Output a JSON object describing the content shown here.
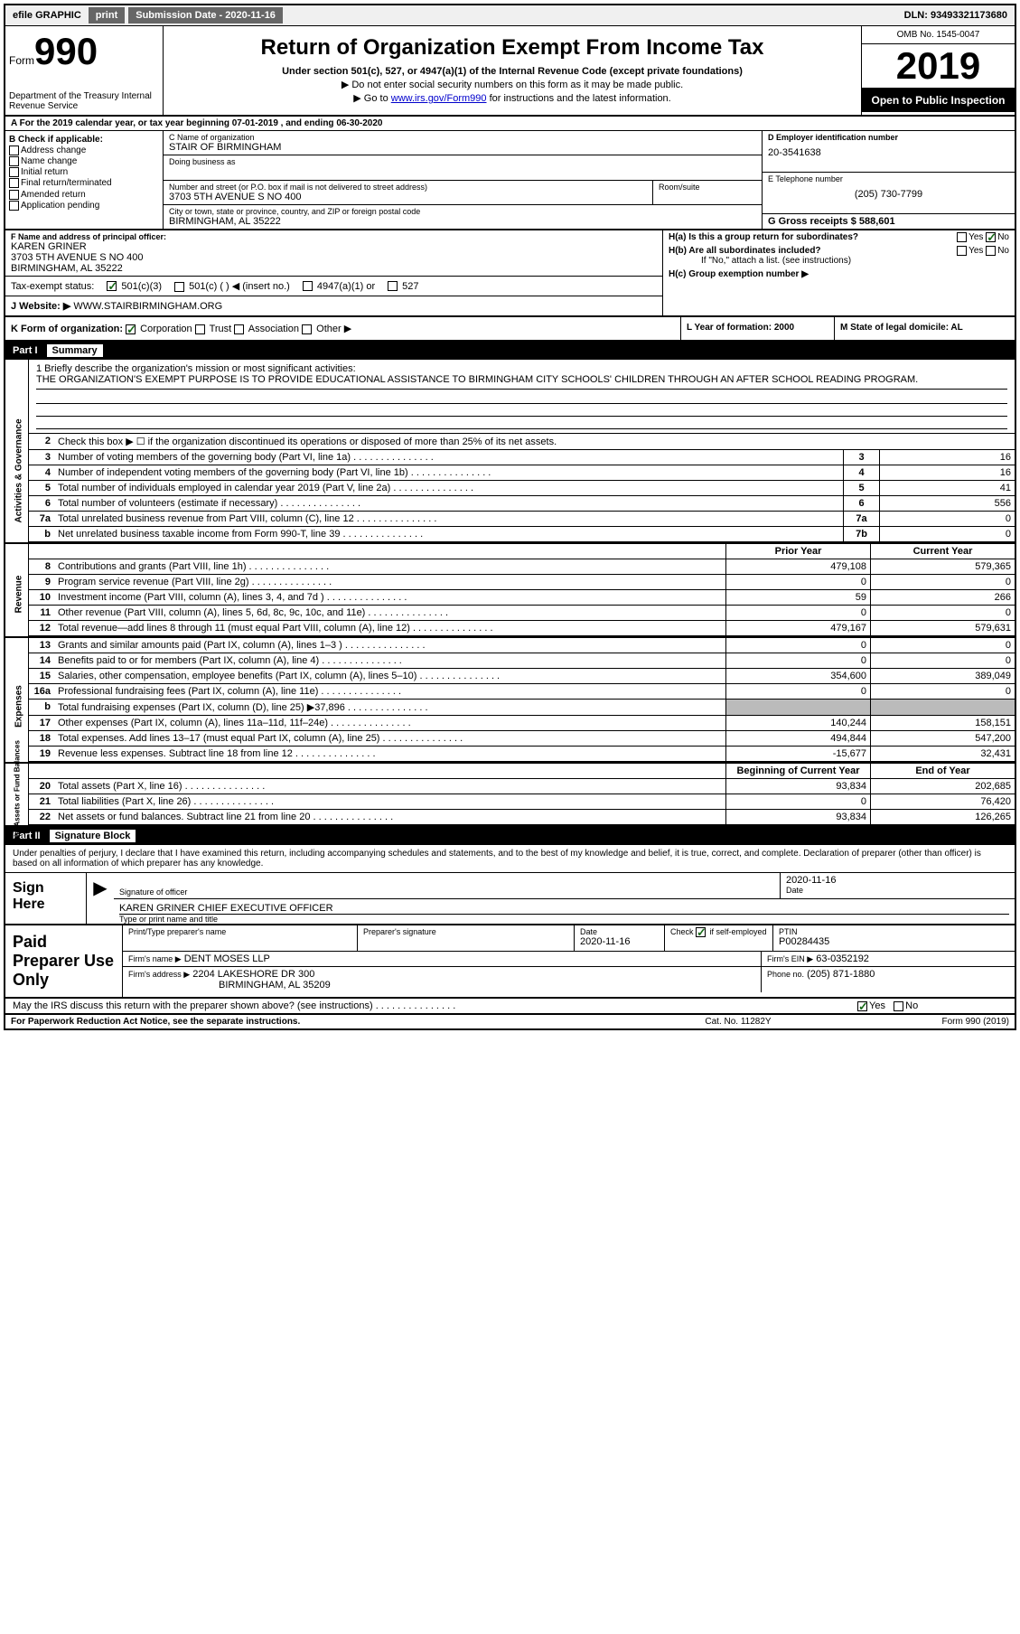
{
  "topbar": {
    "efile": "efile GRAPHIC",
    "print": "print",
    "subdate_label": "Submission Date - 2020-11-16",
    "dln": "DLN: 93493321173680"
  },
  "header": {
    "form_label": "Form",
    "form_num": "990",
    "dept": "Department of the Treasury\nInternal Revenue Service",
    "title": "Return of Organization Exempt From Income Tax",
    "sub1": "Under section 501(c), 527, or 4947(a)(1) of the Internal Revenue Code (except private foundations)",
    "sub2": "▶ Do not enter social security numbers on this form as it may be made public.",
    "sub3_pre": "▶ Go to ",
    "sub3_link": "www.irs.gov/Form990",
    "sub3_post": " for instructions and the latest information.",
    "omb": "OMB No. 1545-0047",
    "year": "2019",
    "open_pub": "Open to Public Inspection"
  },
  "lineA": "A For the 2019 calendar year, or tax year beginning 07-01-2019    , and ending 06-30-2020",
  "sectionB": {
    "label": "B Check if applicable:",
    "opts": [
      "Address change",
      "Name change",
      "Initial return",
      "Final return/terminated",
      "Amended return",
      "Application pending"
    ]
  },
  "sectionC": {
    "name_label": "C Name of organization",
    "name": "STAIR OF BIRMINGHAM",
    "dba_label": "Doing business as",
    "addr_label": "Number and street (or P.O. box if mail is not delivered to street address)",
    "addr": "3703 5TH AVENUE S NO 400",
    "room_label": "Room/suite",
    "city_label": "City or town, state or province, country, and ZIP or foreign postal code",
    "city": "BIRMINGHAM, AL  35222"
  },
  "sectionD": {
    "label": "D Employer identification number",
    "val": "20-3541638"
  },
  "sectionE": {
    "label": "E Telephone number",
    "val": "(205) 730-7799"
  },
  "sectionG": {
    "label": "G Gross receipts $ 588,601"
  },
  "sectionF": {
    "label": "F  Name and address of principal officer:",
    "name": "KAREN GRINER",
    "addr": "3703 5TH AVENUE S NO 400",
    "city": "BIRMINGHAM, AL  35222"
  },
  "sectionH": {
    "ha": "H(a)  Is this a group return for subordinates?",
    "hb": "H(b)  Are all subordinates included?",
    "hb_note": "If \"No,\" attach a list. (see instructions)",
    "hc": "H(c)  Group exemption number ▶",
    "yes": "Yes",
    "no": "No"
  },
  "taxexempt": {
    "label": "Tax-exempt status:",
    "o1": "501(c)(3)",
    "o2": "501(c) (  ) ◀ (insert no.)",
    "o3": "4947(a)(1) or",
    "o4": "527"
  },
  "sectionJ": {
    "label": "J     Website: ▶",
    "val": "WWW.STAIRBIRMINGHAM.ORG"
  },
  "sectionK": {
    "label": "K Form of organization:",
    "o1": "Corporation",
    "o2": "Trust",
    "o3": "Association",
    "o4": "Other ▶"
  },
  "sectionL": {
    "label": "L Year of formation: 2000"
  },
  "sectionM": {
    "label": "M State of legal domicile: AL"
  },
  "part1": {
    "num": "Part I",
    "title": "Summary"
  },
  "vert": {
    "ag": "Activities & Governance",
    "rev": "Revenue",
    "exp": "Expenses",
    "nab": "Net Assets or\nFund Balances"
  },
  "mission": {
    "label": "1  Briefly describe the organization's mission or most significant activities:",
    "text": "THE ORGANIZATION'S EXEMPT PURPOSE IS TO PROVIDE EDUCATIONAL ASSISTANCE TO BIRMINGHAM CITY SCHOOLS' CHILDREN THROUGH AN AFTER SCHOOL READING PROGRAM."
  },
  "line2": "Check this box ▶ ☐  if the organization discontinued its operations or disposed of more than 25% of its net assets.",
  "rows_ag": [
    {
      "n": "3",
      "d": "Number of voting members of the governing body (Part VI, line 1a)",
      "b": "3",
      "v": "16"
    },
    {
      "n": "4",
      "d": "Number of independent voting members of the governing body (Part VI, line 1b)",
      "b": "4",
      "v": "16"
    },
    {
      "n": "5",
      "d": "Total number of individuals employed in calendar year 2019 (Part V, line 2a)",
      "b": "5",
      "v": "41"
    },
    {
      "n": "6",
      "d": "Total number of volunteers (estimate if necessary)",
      "b": "6",
      "v": "556"
    },
    {
      "n": "7a",
      "d": "Total unrelated business revenue from Part VIII, column (C), line 12",
      "b": "7a",
      "v": "0"
    },
    {
      "n": "b",
      "d": "Net unrelated business taxable income from Form 990-T, line 39",
      "b": "7b",
      "v": "0"
    }
  ],
  "hdr_pycy": {
    "py": "Prior Year",
    "cy": "Current Year"
  },
  "rows_rev": [
    {
      "n": "8",
      "d": "Contributions and grants (Part VIII, line 1h)",
      "py": "479,108",
      "cy": "579,365"
    },
    {
      "n": "9",
      "d": "Program service revenue (Part VIII, line 2g)",
      "py": "0",
      "cy": "0"
    },
    {
      "n": "10",
      "d": "Investment income (Part VIII, column (A), lines 3, 4, and 7d )",
      "py": "59",
      "cy": "266"
    },
    {
      "n": "11",
      "d": "Other revenue (Part VIII, column (A), lines 5, 6d, 8c, 9c, 10c, and 11e)",
      "py": "0",
      "cy": "0"
    },
    {
      "n": "12",
      "d": "Total revenue—add lines 8 through 11 (must equal Part VIII, column (A), line 12)",
      "py": "479,167",
      "cy": "579,631"
    }
  ],
  "rows_exp": [
    {
      "n": "13",
      "d": "Grants and similar amounts paid (Part IX, column (A), lines 1–3 )",
      "py": "0",
      "cy": "0"
    },
    {
      "n": "14",
      "d": "Benefits paid to or for members (Part IX, column (A), line 4)",
      "py": "0",
      "cy": "0"
    },
    {
      "n": "15",
      "d": "Salaries, other compensation, employee benefits (Part IX, column (A), lines 5–10)",
      "py": "354,600",
      "cy": "389,049"
    },
    {
      "n": "16a",
      "d": "Professional fundraising fees (Part IX, column (A), line 11e)",
      "py": "0",
      "cy": "0"
    },
    {
      "n": "b",
      "d": "Total fundraising expenses (Part IX, column (D), line 25) ▶37,896",
      "py": "grey",
      "cy": "grey"
    },
    {
      "n": "17",
      "d": "Other expenses (Part IX, column (A), lines 11a–11d, 11f–24e)",
      "py": "140,244",
      "cy": "158,151"
    },
    {
      "n": "18",
      "d": "Total expenses. Add lines 13–17 (must equal Part IX, column (A), line 25)",
      "py": "494,844",
      "cy": "547,200"
    },
    {
      "n": "19",
      "d": "Revenue less expenses. Subtract line 18 from line 12",
      "py": "-15,677",
      "cy": "32,431"
    }
  ],
  "hdr_bcey": {
    "py": "Beginning of Current Year",
    "cy": "End of Year"
  },
  "rows_nab": [
    {
      "n": "20",
      "d": "Total assets (Part X, line 16)",
      "py": "93,834",
      "cy": "202,685"
    },
    {
      "n": "21",
      "d": "Total liabilities (Part X, line 26)",
      "py": "0",
      "cy": "76,420"
    },
    {
      "n": "22",
      "d": "Net assets or fund balances. Subtract line 21 from line 20",
      "py": "93,834",
      "cy": "126,265"
    }
  ],
  "part2": {
    "num": "Part II",
    "title": "Signature Block"
  },
  "sig_intro": "Under penalties of perjury, I declare that I have examined this return, including accompanying schedules and statements, and to the best of my knowledge and belief, it is true, correct, and complete. Declaration of preparer (other than officer) is based on all information of which preparer has any knowledge.",
  "sig": {
    "here": "Sign Here",
    "sig_label": "Signature of officer",
    "date_label": "Date",
    "date": "2020-11-16",
    "name": "KAREN GRINER  CHIEF EXECUTIVE OFFICER",
    "name_label": "Type or print name and title"
  },
  "prep": {
    "label": "Paid Preparer Use Only",
    "pname_label": "Print/Type preparer's name",
    "psig_label": "Preparer's signature",
    "pdate_label": "Date",
    "pdate": "2020-11-16",
    "pcheck_label": "Check ☑ if self-employed",
    "ptin_label": "PTIN",
    "ptin": "P00284435",
    "firm_label": "Firm's name     ▶",
    "firm": "DENT MOSES LLP",
    "ein_label": "Firm's EIN ▶",
    "ein": "63-0352192",
    "faddr_label": "Firm's address ▶",
    "faddr1": "2204 LAKESHORE DR 300",
    "faddr2": "BIRMINGHAM, AL  35209",
    "phone_label": "Phone no.",
    "phone": "(205) 871-1880"
  },
  "discuss": "May the IRS discuss this return with the preparer shown above? (see instructions)",
  "footer": {
    "left": "For Paperwork Reduction Act Notice, see the separate instructions.",
    "mid": "Cat. No. 11282Y",
    "right": "Form 990 (2019)"
  }
}
